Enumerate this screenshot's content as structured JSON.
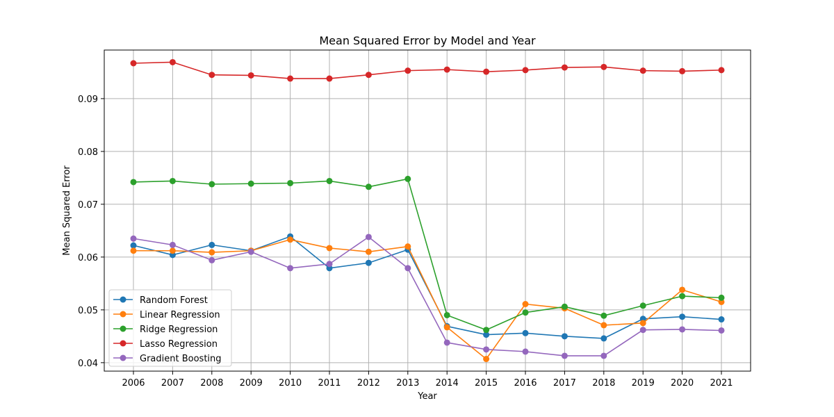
{
  "chart_data": {
    "type": "line",
    "title": "Mean Squared Error by Model and Year",
    "xlabel": "Year",
    "ylabel": "Mean Squared Error",
    "categories": [
      "2006",
      "2007",
      "2008",
      "2009",
      "2010",
      "2011",
      "2012",
      "2013",
      "2014",
      "2015",
      "2016",
      "2017",
      "2018",
      "2019",
      "2020",
      "2021"
    ],
    "ylim": [
      0.0384,
      0.0992
    ],
    "yticks": [
      0.04,
      0.05,
      0.06,
      0.07,
      0.08,
      0.09
    ],
    "ytick_labels": [
      "0.04",
      "0.05",
      "0.06",
      "0.07",
      "0.08",
      "0.09"
    ],
    "grid": true,
    "legend_position": "lower-left",
    "series": [
      {
        "name": "Random Forest",
        "color": "#1f77b4",
        "values": [
          0.0622,
          0.0604,
          0.0623,
          0.0612,
          0.0639,
          0.0579,
          0.0589,
          0.0614,
          0.0469,
          0.0453,
          0.0456,
          0.045,
          0.0446,
          0.0483,
          0.0487,
          0.0482
        ]
      },
      {
        "name": "Linear Regression",
        "color": "#ff7f0e",
        "values": [
          0.0612,
          0.0612,
          0.0609,
          0.0612,
          0.0633,
          0.0617,
          0.061,
          0.062,
          0.0467,
          0.0407,
          0.0511,
          0.0503,
          0.0471,
          0.0475,
          0.0538,
          0.0515
        ]
      },
      {
        "name": "Ridge Regression",
        "color": "#2ca02c",
        "values": [
          0.0742,
          0.0744,
          0.0738,
          0.0739,
          0.074,
          0.0744,
          0.0733,
          0.0748,
          0.049,
          0.0462,
          0.0495,
          0.0506,
          0.0489,
          0.0508,
          0.0526,
          0.0523
        ]
      },
      {
        "name": "Lasso Regression",
        "color": "#d62728",
        "values": [
          0.0967,
          0.0969,
          0.0945,
          0.0944,
          0.0938,
          0.0938,
          0.0945,
          0.0953,
          0.0955,
          0.0951,
          0.0954,
          0.0959,
          0.096,
          0.0953,
          0.0952,
          0.0954
        ]
      },
      {
        "name": "Gradient Boosting",
        "color": "#9467bd",
        "values": [
          0.0635,
          0.0623,
          0.0594,
          0.061,
          0.0579,
          0.0587,
          0.0638,
          0.0579,
          0.0438,
          0.0425,
          0.0421,
          0.0413,
          0.0413,
          0.0462,
          0.0463,
          0.0461
        ]
      }
    ]
  }
}
